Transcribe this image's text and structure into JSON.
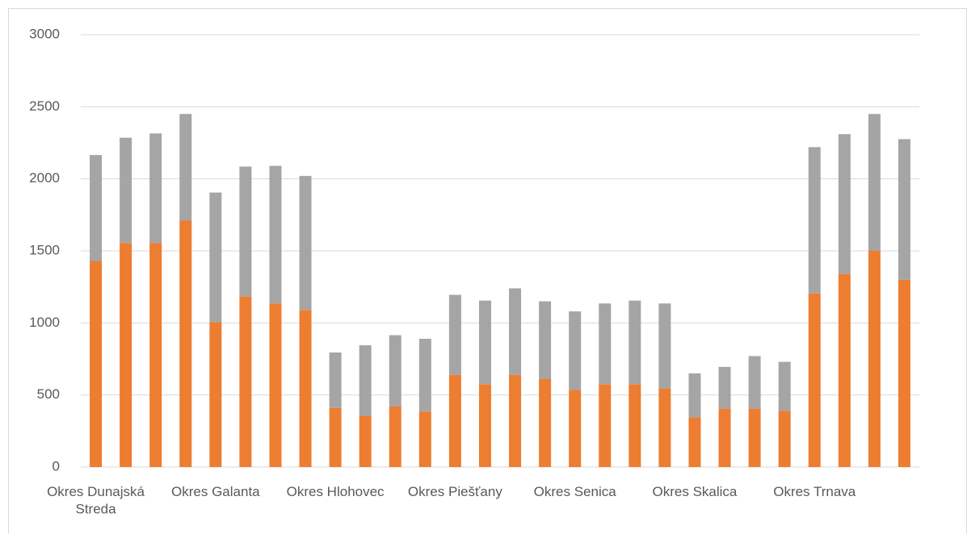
{
  "chart_data": {
    "type": "stacked_bar",
    "categories": [
      "Okres Dunajská Streda",
      null,
      null,
      null,
      "Okres Galanta",
      null,
      null,
      null,
      "Okres Hlohovec",
      null,
      null,
      null,
      "Okres Piešťany",
      null,
      null,
      null,
      "Okres Senica",
      null,
      null,
      null,
      "Okres Skalica",
      null,
      null,
      null,
      "Okres Trnava",
      null,
      null,
      null
    ],
    "series": [
      {
        "color": "#ed7d31",
        "values": [
          1430,
          1555,
          1555,
          1710,
          1005,
          1185,
          1135,
          1090,
          410,
          355,
          420,
          385,
          640,
          575,
          640,
          610,
          535,
          575,
          575,
          545,
          345,
          405,
          405,
          390,
          1205,
          1340,
          1500,
          1300
        ]
      },
      {
        "color": "#a5a5a5",
        "values": [
          735,
          730,
          760,
          740,
          900,
          900,
          955,
          930,
          385,
          490,
          495,
          505,
          555,
          580,
          600,
          540,
          545,
          560,
          580,
          590,
          305,
          290,
          365,
          340,
          1015,
          970,
          950,
          975
        ]
      }
    ],
    "ylim": [
      0,
      3000
    ],
    "yticks": [
      0,
      500,
      1000,
      1500,
      2000,
      2500,
      3000
    ],
    "grid": true
  }
}
